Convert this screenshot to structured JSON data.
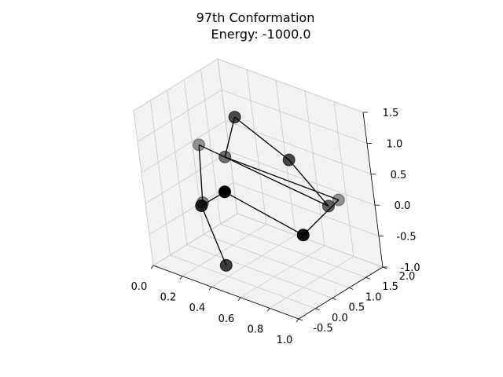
{
  "title": {
    "line1": "97th Conformation",
    "line2": "Energy: -1000.0"
  },
  "chart_data": {
    "type": "scatter",
    "subtype": "3d-line-scatter",
    "title": "97th Conformation\nEnergy: -1000.0",
    "xlabel": "",
    "ylabel": "",
    "zlabel": "",
    "xlim": [
      0.0,
      1.0
    ],
    "ylim": [
      -0.5,
      2.0
    ],
    "zlim": [
      -1.0,
      1.5
    ],
    "x_ticks": [
      "0.0",
      "0.2",
      "0.4",
      "0.6",
      "0.8",
      "1.0"
    ],
    "y_ticks": [
      "-0.5",
      "0.0",
      "0.5",
      "1.0",
      "1.5",
      "2.0"
    ],
    "z_ticks": [
      "-1.0",
      "-0.5",
      "0.0",
      "0.5",
      "1.0",
      "1.5"
    ],
    "grid": true,
    "marker_color": "#000000",
    "line_color": "#000000",
    "pane_color": "#f2f2f2",
    "chain": [
      {
        "x": 0.1,
        "y": 0.7,
        "z": -0.3
      },
      {
        "x": 0.1,
        "y": 0.8,
        "z": 0.6
      },
      {
        "x": 0.9,
        "y": 1.1,
        "z": 0.2
      },
      {
        "x": 0.5,
        "y": 1.7,
        "z": 0.4
      },
      {
        "x": 0.2,
        "y": 1.5,
        "z": 0.9
      },
      {
        "x": 0.25,
        "y": 0.9,
        "z": 0.5
      },
      {
        "x": 0.9,
        "y": 1.4,
        "z": 0.2
      },
      {
        "x": 0.9,
        "y": 0.3,
        "z": 0.0
      },
      {
        "x": 0.4,
        "y": 0.2,
        "z": 0.3
      },
      {
        "x": 0.35,
        "y": -0.3,
        "z": 0.2
      },
      {
        "x": 0.5,
        "y": -0.4,
        "z": -0.6
      }
    ],
    "marker_alpha": [
      0.45,
      0.4,
      0.6,
      0.7,
      0.7,
      0.55,
      0.4,
      0.95,
      1.0,
      0.85,
      0.75
    ]
  }
}
